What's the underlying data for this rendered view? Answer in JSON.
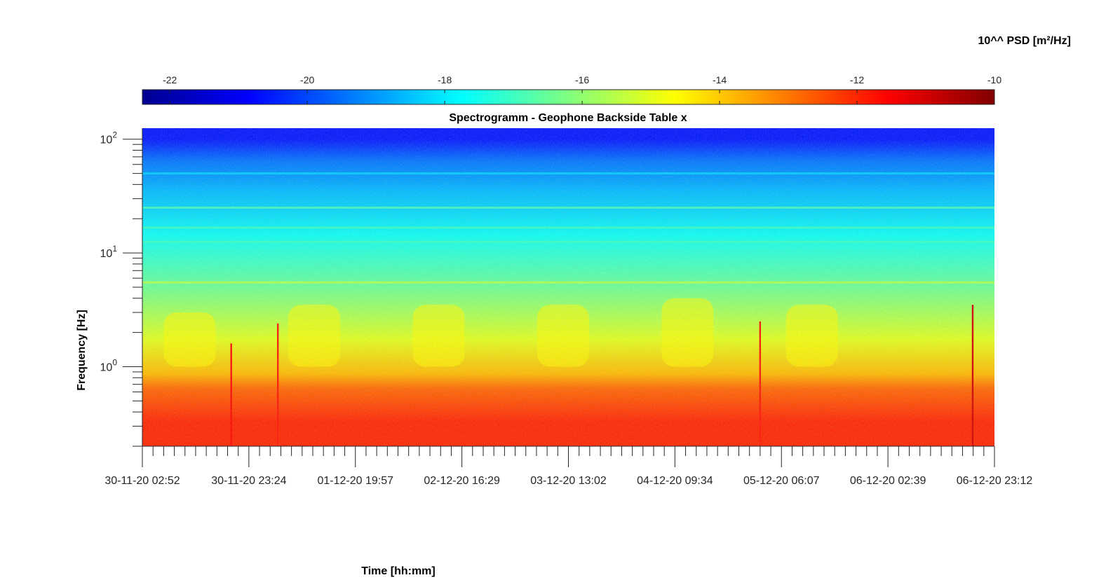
{
  "chart_data": {
    "type": "heatmap",
    "title": "Spectrogramm - Geophone Backside Table x",
    "xlabel": "Time [hh:mm]",
    "ylabel": "Frequency [Hz]",
    "colorbar_label": "10^^ PSD [m²/Hz]",
    "colormap": "jet",
    "colorbar_ticks": [
      -22,
      -20,
      -18,
      -16,
      -14,
      -12,
      -10
    ],
    "colorbar_range": [
      -22.4,
      -10
    ],
    "y_scale": "log",
    "y_range": [
      0.2,
      125
    ],
    "y_ticks": [
      {
        "base": "10",
        "exp": "0",
        "value": 1
      },
      {
        "base": "10",
        "exp": "1",
        "value": 10
      },
      {
        "base": "10",
        "exp": "2",
        "value": 100
      }
    ],
    "x_ticks": [
      "30-11-20 02:52",
      "30-11-20 23:24",
      "01-12-20 19:57",
      "02-12-20 16:29",
      "03-12-20 13:02",
      "04-12-20 09:34",
      "05-12-20 06:07",
      "06-12-20 02:39",
      "06-12-20 23:12"
    ],
    "psd_bands": [
      {
        "f_min": 0.2,
        "f_max": 0.55,
        "log10_psd": -12.0
      },
      {
        "f_min": 0.55,
        "f_max": 0.75,
        "log10_psd": -12.8
      },
      {
        "f_min": 0.75,
        "f_max": 1.0,
        "log10_psd": -13.8
      },
      {
        "f_min": 1.0,
        "f_max": 3.0,
        "log10_psd": -15.0
      },
      {
        "f_min": 3.0,
        "f_max": 8.0,
        "log10_psd": -16.4
      },
      {
        "f_min": 8.0,
        "f_max": 25.0,
        "log10_psd": -17.6
      },
      {
        "f_min": 25.0,
        "f_max": 50.0,
        "log10_psd": -18.6
      },
      {
        "f_min": 50.0,
        "f_max": 80.0,
        "log10_psd": -19.4
      },
      {
        "f_min": 80.0,
        "f_max": 125.0,
        "log10_psd": -20.6
      }
    ],
    "line_peaks": [
      {
        "f": 50.0,
        "log10_psd": -18.2
      },
      {
        "f": 25.0,
        "log10_psd": -16.8
      },
      {
        "f": 16.7,
        "log10_psd": -17.0
      },
      {
        "f": 12.5,
        "log10_psd": -17.0
      },
      {
        "f": 5.5,
        "log10_psd": -15.4
      }
    ],
    "daytime_activity": [
      {
        "t_start": "30-11-20 07:00",
        "t_end": "30-11-20 17:00",
        "f_max": 3.0,
        "log10_psd": -14.6
      },
      {
        "t_start": "01-12-20 07:00",
        "t_end": "01-12-20 17:00",
        "f_max": 3.5,
        "log10_psd": -14.6
      },
      {
        "t_start": "02-12-20 07:00",
        "t_end": "02-12-20 17:00",
        "f_max": 3.5,
        "log10_psd": -14.6
      },
      {
        "t_start": "03-12-20 07:00",
        "t_end": "03-12-20 17:00",
        "f_max": 3.5,
        "log10_psd": -14.6
      },
      {
        "t_start": "04-12-20 07:00",
        "t_end": "04-12-20 17:00",
        "f_max": 4.0,
        "log10_psd": -14.6
      },
      {
        "t_start": "05-12-20 07:00",
        "t_end": "05-12-20 17:00",
        "f_max": 3.5,
        "log10_psd": -14.6
      }
    ],
    "transient_events": [
      {
        "t": "30-11-20 20:00",
        "f_max": 1.6,
        "log10_psd": -11.6
      },
      {
        "t": "01-12-20 05:00",
        "f_max": 2.4,
        "log10_psd": -11.8
      },
      {
        "t": "05-12-20 02:00",
        "f_max": 2.5,
        "log10_psd": -11.8
      },
      {
        "t": "06-12-20 19:00",
        "f_max": 3.5,
        "log10_psd": -11.0
      }
    ]
  }
}
